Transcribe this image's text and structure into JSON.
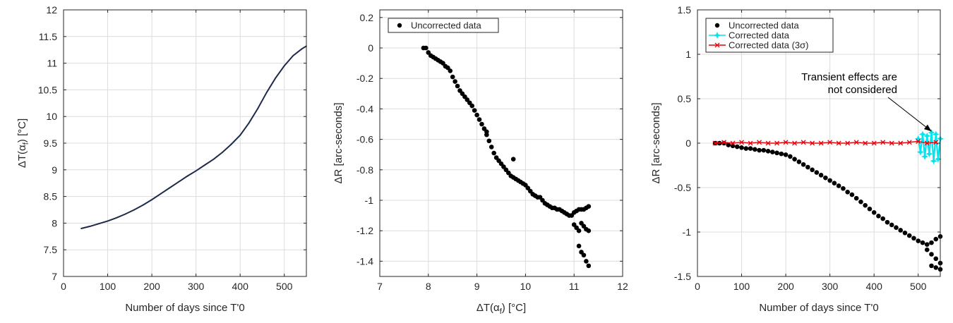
{
  "chart_data": [
    {
      "type": "line",
      "title": "",
      "xlabel": "Number of days since T'0",
      "ylabel_base": "ΔT(α",
      "ylabel_sub": "f",
      "ylabel_end": ") [°C]",
      "xlim": [
        0,
        550
      ],
      "ylim": [
        7,
        12
      ],
      "xticks": [
        0,
        100,
        200,
        300,
        400,
        500
      ],
      "yticks": [
        7,
        7.5,
        8,
        8.5,
        9,
        9.5,
        10,
        10.5,
        11,
        11.5,
        12
      ],
      "grid": true,
      "line_color": "#1f2a4a",
      "series": [
        {
          "x": [
            40,
            60,
            80,
            100,
            120,
            140,
            160,
            180,
            200,
            220,
            240,
            260,
            280,
            300,
            320,
            340,
            360,
            380,
            400,
            420,
            440,
            460,
            480,
            500,
            520,
            540,
            550
          ],
          "y": [
            7.9,
            7.94,
            7.99,
            8.04,
            8.1,
            8.17,
            8.25,
            8.34,
            8.44,
            8.55,
            8.66,
            8.77,
            8.88,
            8.98,
            9.09,
            9.2,
            9.33,
            9.48,
            9.65,
            9.88,
            10.15,
            10.45,
            10.72,
            10.95,
            11.14,
            11.27,
            11.32
          ]
        }
      ]
    },
    {
      "type": "scatter",
      "title": "",
      "xlabel_base": "ΔT(α",
      "xlabel_sub": "f",
      "xlabel_end": ") [°C]",
      "ylabel": "ΔR [arc-seconds]",
      "xlim": [
        7,
        12
      ],
      "ylim": [
        -1.5,
        0.25
      ],
      "xticks": [
        7,
        8,
        9,
        10,
        11,
        12
      ],
      "yticks": [
        -1.4,
        -1.2,
        -1,
        -0.8,
        -0.6,
        -0.4,
        -0.2,
        0,
        0.2
      ],
      "grid": true,
      "legend": "top-left",
      "series": [
        {
          "name": "Uncorrected data",
          "color": "#000000",
          "x": [
            7.9,
            7.95,
            8.0,
            8.05,
            8.1,
            8.15,
            8.2,
            8.25,
            8.3,
            8.35,
            8.4,
            8.45,
            8.5,
            8.55,
            8.6,
            8.65,
            8.7,
            8.75,
            8.8,
            8.85,
            8.9,
            8.95,
            9.0,
            9.05,
            9.1,
            9.15,
            9.2,
            9.25,
            9.3,
            9.35,
            9.4,
            9.45,
            9.5,
            9.55,
            9.6,
            9.65,
            9.7,
            9.75,
            9.8,
            9.85,
            9.9,
            9.95,
            10.0,
            10.05,
            10.1,
            10.15,
            10.2,
            10.25,
            10.3,
            10.35,
            10.4,
            10.45,
            10.5,
            10.55,
            10.6,
            10.65,
            10.7,
            10.75,
            10.8,
            10.85,
            10.9,
            10.95,
            11.0,
            11.05,
            11.1,
            11.15,
            11.2,
            11.25,
            11.3,
            11.1,
            11.15,
            11.2,
            11.25,
            11.3,
            11.0,
            11.05,
            11.1,
            11.15,
            11.2,
            11.25,
            11.3,
            9.2,
            9.75
          ],
          "y": [
            0.0,
            0.0,
            -0.03,
            -0.05,
            -0.06,
            -0.07,
            -0.08,
            -0.09,
            -0.1,
            -0.12,
            -0.13,
            -0.15,
            -0.19,
            -0.22,
            -0.25,
            -0.28,
            -0.3,
            -0.32,
            -0.34,
            -0.36,
            -0.38,
            -0.41,
            -0.44,
            -0.47,
            -0.5,
            -0.53,
            -0.57,
            -0.61,
            -0.65,
            -0.69,
            -0.72,
            -0.74,
            -0.76,
            -0.78,
            -0.8,
            -0.82,
            -0.84,
            -0.85,
            -0.86,
            -0.87,
            -0.88,
            -0.89,
            -0.9,
            -0.92,
            -0.94,
            -0.96,
            -0.97,
            -0.98,
            -0.98,
            -1.0,
            -1.02,
            -1.03,
            -1.04,
            -1.05,
            -1.05,
            -1.06,
            -1.06,
            -1.07,
            -1.08,
            -1.09,
            -1.1,
            -1.1,
            -1.08,
            -1.07,
            -1.06,
            -1.06,
            -1.06,
            -1.05,
            -1.04,
            -1.3,
            -1.34,
            -1.36,
            -1.4,
            -1.43,
            -1.16,
            -1.18,
            -1.2,
            -1.15,
            -1.17,
            -1.19,
            -1.2,
            -0.55,
            -0.73
          ]
        }
      ]
    },
    {
      "type": "scatter",
      "title": "",
      "xlabel": "Number of days since T'0",
      "ylabel": "ΔR [arc-seconds]",
      "xlim": [
        0,
        550
      ],
      "ylim": [
        -1.5,
        1.5
      ],
      "xticks": [
        0,
        100,
        200,
        300,
        400,
        500
      ],
      "yticks": [
        -1.5,
        -1,
        -0.5,
        0,
        0.5,
        1,
        1.5
      ],
      "grid": true,
      "legend": "top-left",
      "annotation": {
        "lines": [
          "Transient effects are",
          "not considered"
        ],
        "target_x": 530,
        "target_y": 0.07
      },
      "series": [
        {
          "name": "Uncorrected data",
          "color": "#000000",
          "marker": "dot",
          "x": [
            40,
            50,
            60,
            70,
            80,
            90,
            100,
            110,
            120,
            130,
            140,
            150,
            160,
            170,
            180,
            190,
            200,
            210,
            220,
            230,
            240,
            250,
            260,
            270,
            280,
            290,
            300,
            310,
            320,
            330,
            340,
            350,
            360,
            370,
            380,
            390,
            400,
            410,
            420,
            430,
            440,
            450,
            460,
            470,
            480,
            490,
            500,
            510,
            520,
            530,
            540,
            550,
            520,
            530,
            540,
            550,
            530,
            540,
            550
          ],
          "y": [
            0.0,
            0.0,
            0.0,
            -0.02,
            -0.03,
            -0.04,
            -0.05,
            -0.06,
            -0.06,
            -0.07,
            -0.08,
            -0.08,
            -0.09,
            -0.1,
            -0.11,
            -0.12,
            -0.13,
            -0.15,
            -0.18,
            -0.21,
            -0.24,
            -0.27,
            -0.3,
            -0.33,
            -0.36,
            -0.39,
            -0.42,
            -0.45,
            -0.48,
            -0.51,
            -0.55,
            -0.58,
            -0.62,
            -0.66,
            -0.7,
            -0.74,
            -0.78,
            -0.82,
            -0.85,
            -0.89,
            -0.92,
            -0.95,
            -0.98,
            -1.01,
            -1.04,
            -1.07,
            -1.1,
            -1.12,
            -1.14,
            -1.12,
            -1.08,
            -1.05,
            -1.2,
            -1.25,
            -1.3,
            -1.35,
            -1.38,
            -1.4,
            -1.42
          ]
        },
        {
          "name": "Corrected data",
          "color": "#00e5ee",
          "marker": "star",
          "x": [
            500,
            505,
            510,
            515,
            520,
            525,
            530,
            535,
            540,
            545,
            550
          ],
          "y": [
            0.05,
            -0.1,
            0.1,
            -0.15,
            0.08,
            -0.12,
            0.12,
            -0.2,
            0.1,
            -0.18,
            0.05
          ]
        },
        {
          "name": "Corrected data (3σ)",
          "color": "#e8000b",
          "marker": "x",
          "x": [
            40,
            60,
            80,
            100,
            120,
            140,
            160,
            180,
            200,
            220,
            240,
            260,
            280,
            300,
            320,
            340,
            360,
            380,
            400,
            420,
            440,
            460,
            480,
            500,
            520,
            540
          ],
          "y": [
            0.0,
            0.01,
            0.0,
            0.01,
            0.0,
            0.01,
            0.0,
            0.0,
            0.01,
            0.0,
            0.01,
            0.0,
            0.0,
            0.01,
            0.0,
            0.0,
            0.01,
            0.0,
            0.0,
            0.01,
            0.0,
            0.0,
            0.01,
            0.02,
            0.0,
            0.01
          ]
        }
      ]
    }
  ]
}
